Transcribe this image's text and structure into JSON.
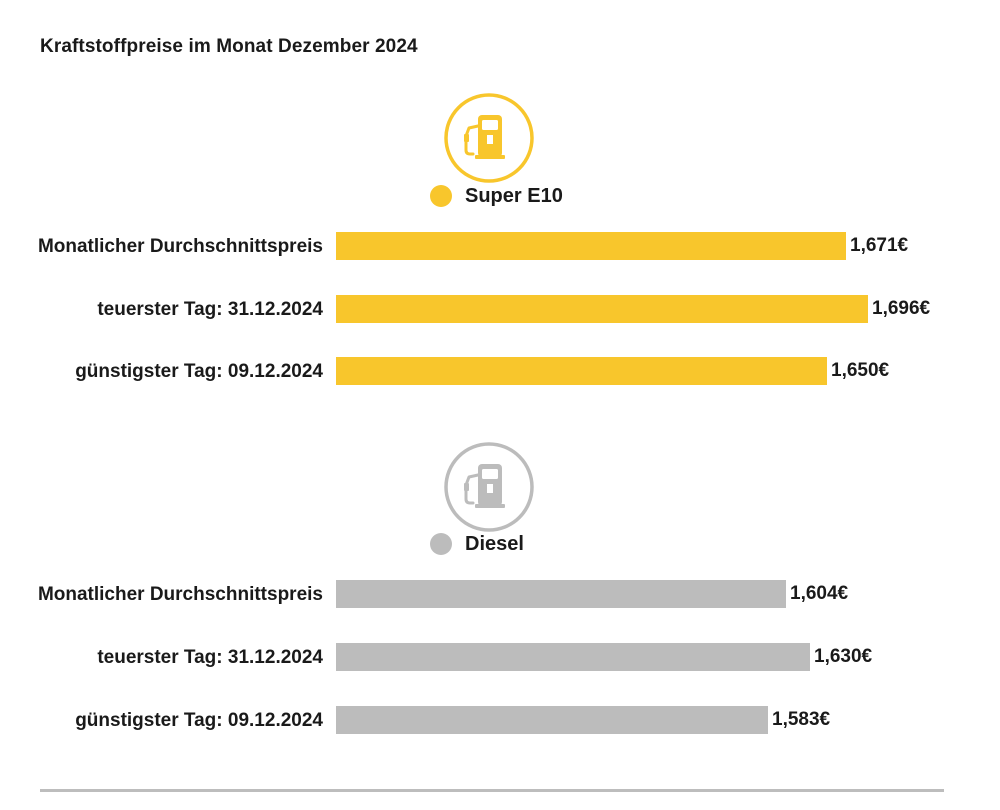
{
  "title": "Kraftstoffpreise im Monat Dezember 2024",
  "chart_data": {
    "type": "bar",
    "orientation": "horizontal",
    "title": "Kraftstoffpreise im Monat Dezember 2024",
    "categories": [
      "Monatlicher Durchschnittspreis",
      "teuerster Tag: 31.12.2024",
      "günstigster Tag: 09.12.2024"
    ],
    "series": [
      {
        "name": "Super E10",
        "color": "#f8c62c",
        "icon": "fuel-pump-icon",
        "values": [
          1.671,
          1.696,
          1.65
        ],
        "value_labels": [
          "1,671€",
          "1,696€",
          "1,650€"
        ]
      },
      {
        "name": "Diesel",
        "color": "#bcbcbc",
        "icon": "fuel-pump-icon",
        "values": [
          1.604,
          1.63,
          1.583
        ],
        "value_labels": [
          "1,604€",
          "1,630€",
          "1,583€"
        ]
      }
    ],
    "xlim": [
      1.1,
      1.71
    ],
    "grid": false,
    "legend": "above each group"
  }
}
